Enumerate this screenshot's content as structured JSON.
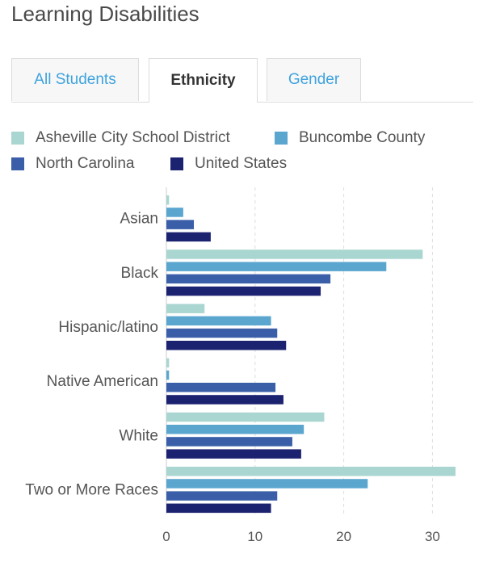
{
  "page": {
    "title": "Learning Disabilities"
  },
  "tabs": [
    {
      "label": "All Students",
      "active": false
    },
    {
      "label": "Ethnicity",
      "active": true
    },
    {
      "label": "Gender",
      "active": false
    }
  ],
  "colors": {
    "accent": "#3ea3dc",
    "series": [
      "#a9d6d0",
      "#5aa6cf",
      "#3a5ea8",
      "#1b2270"
    ]
  },
  "chart_data": {
    "type": "bar",
    "orientation": "horizontal",
    "categories": [
      "Asian",
      "Black",
      "Hispanic/latino",
      "Native American",
      "White",
      "Two or More Races"
    ],
    "series": [
      {
        "name": "Asheville City School District",
        "values": [
          0.3,
          28.9,
          4.3,
          0.3,
          17.8,
          32.6
        ]
      },
      {
        "name": "Buncombe County",
        "values": [
          1.9,
          24.8,
          11.8,
          0.3,
          15.5,
          22.7
        ]
      },
      {
        "name": "North Carolina",
        "values": [
          3.1,
          18.5,
          12.5,
          12.3,
          14.2,
          12.5
        ]
      },
      {
        "name": "United States",
        "values": [
          5.0,
          17.4,
          13.5,
          13.2,
          15.2,
          11.8
        ]
      }
    ],
    "xticks": [
      0,
      10,
      20,
      30
    ],
    "xlim": [
      0,
      33
    ],
    "grid": true,
    "legend": "top"
  }
}
